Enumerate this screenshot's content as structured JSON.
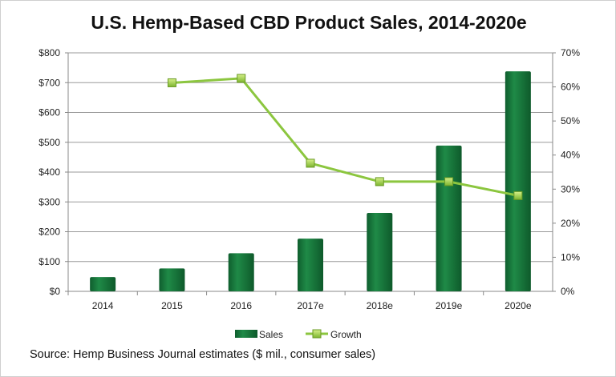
{
  "chart_data": {
    "type": "bar",
    "title": "U.S. Hemp-Based CBD Product Sales, 2014-2020e",
    "categories": [
      "2014",
      "2015",
      "2016",
      "2017e",
      "2018e",
      "2019e",
      "2020e"
    ],
    "series": [
      {
        "name": "Sales",
        "type": "bar",
        "axis": "left",
        "values": [
          48,
          77,
          128,
          177,
          263,
          489,
          738
        ],
        "color": "#17703a"
      },
      {
        "name": "Growth",
        "type": "line",
        "axis": "right",
        "values": [
          null,
          61.2,
          62.5,
          37.6,
          32.2,
          32.2,
          28.1
        ],
        "color": "#8cc63f"
      }
    ],
    "y_left": {
      "ylim": [
        0,
        800
      ],
      "ticks": [
        "$0",
        "$100",
        "$200",
        "$300",
        "$400",
        "$500",
        "$600",
        "$700",
        "$800"
      ]
    },
    "y_right": {
      "ylim": [
        0,
        70
      ],
      "ticks": [
        "0%",
        "10%",
        "20%",
        "30%",
        "40%",
        "50%",
        "60%",
        "70%"
      ]
    },
    "grid": true,
    "legend_position": "bottom",
    "source": "Source: Hemp Business Journal estimates ($ mil., consumer sales)"
  }
}
